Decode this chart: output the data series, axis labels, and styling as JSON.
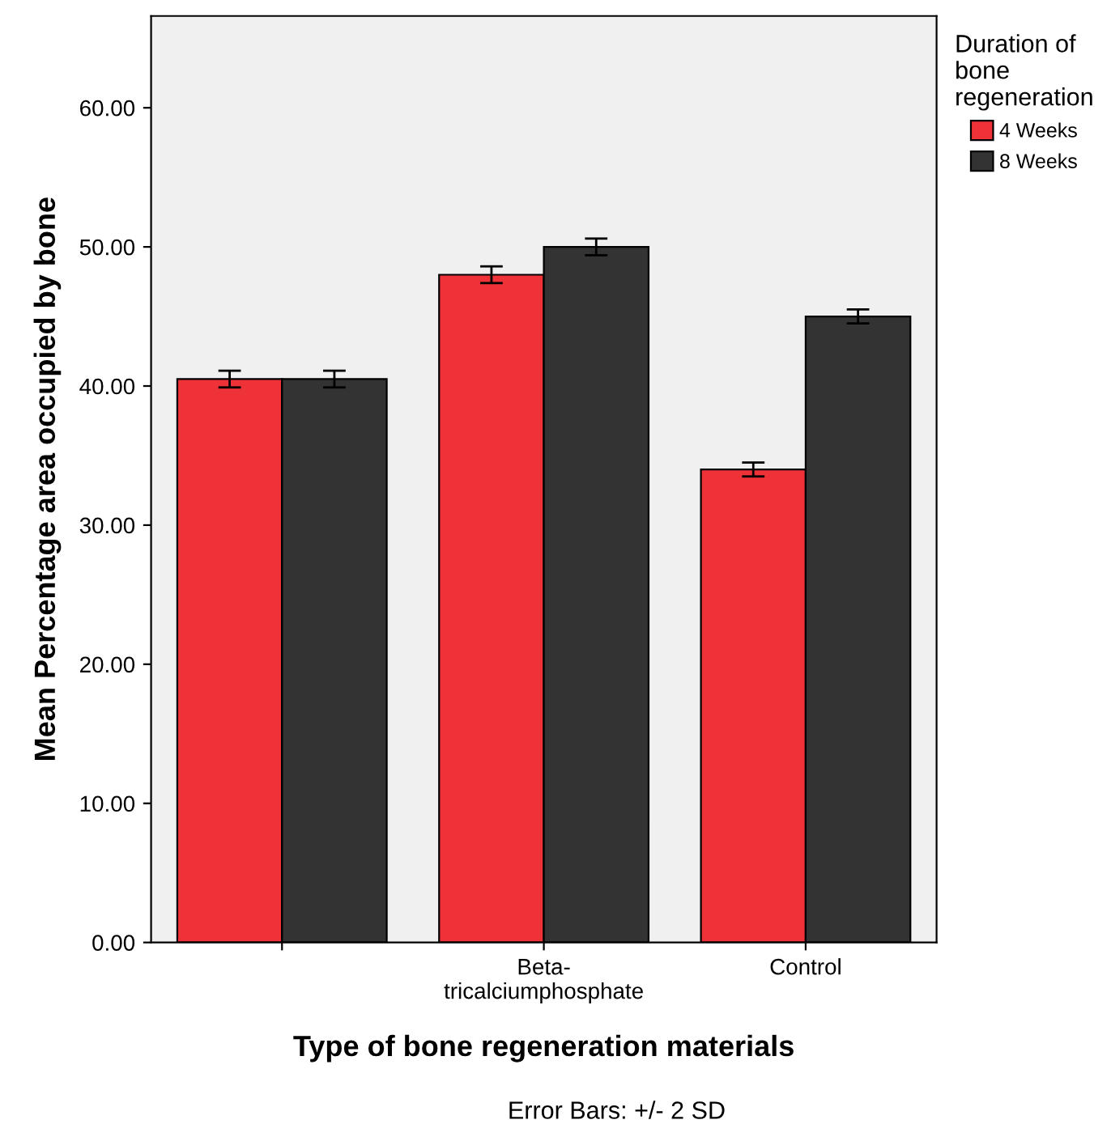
{
  "chart_data": {
    "type": "bar",
    "xlabel": "Type of bone regeneration materials",
    "ylabel": "Mean Percentage area occupied by bone",
    "legend_title": "Duration of\nbone\nregeneration",
    "categories": [
      null,
      "Beta-\ntricalciumphosphate",
      "Control"
    ],
    "series": [
      {
        "name": "4 Weeks",
        "color": "#ee3237",
        "values": [
          40.5,
          48.0,
          34.0
        ],
        "errors": [
          0.6,
          0.6,
          0.5
        ]
      },
      {
        "name": "8 Weeks",
        "color": "#333333",
        "values": [
          40.5,
          50.0,
          45.0
        ],
        "errors": [
          0.6,
          0.6,
          0.5
        ]
      }
    ],
    "ylim": [
      0,
      66.6
    ],
    "yticks": [
      {
        "value": 0,
        "label": "0.00"
      },
      {
        "value": 10,
        "label": "10.00"
      },
      {
        "value": 20,
        "label": "20.00"
      },
      {
        "value": 30,
        "label": "30.00"
      },
      {
        "value": 40,
        "label": "40.00"
      },
      {
        "value": 50,
        "label": "50.00"
      },
      {
        "value": 60,
        "label": "60.00"
      }
    ],
    "grid": false,
    "legend": "top right",
    "annotations": [
      "Error Bars: +/- 2 SD"
    ]
  }
}
